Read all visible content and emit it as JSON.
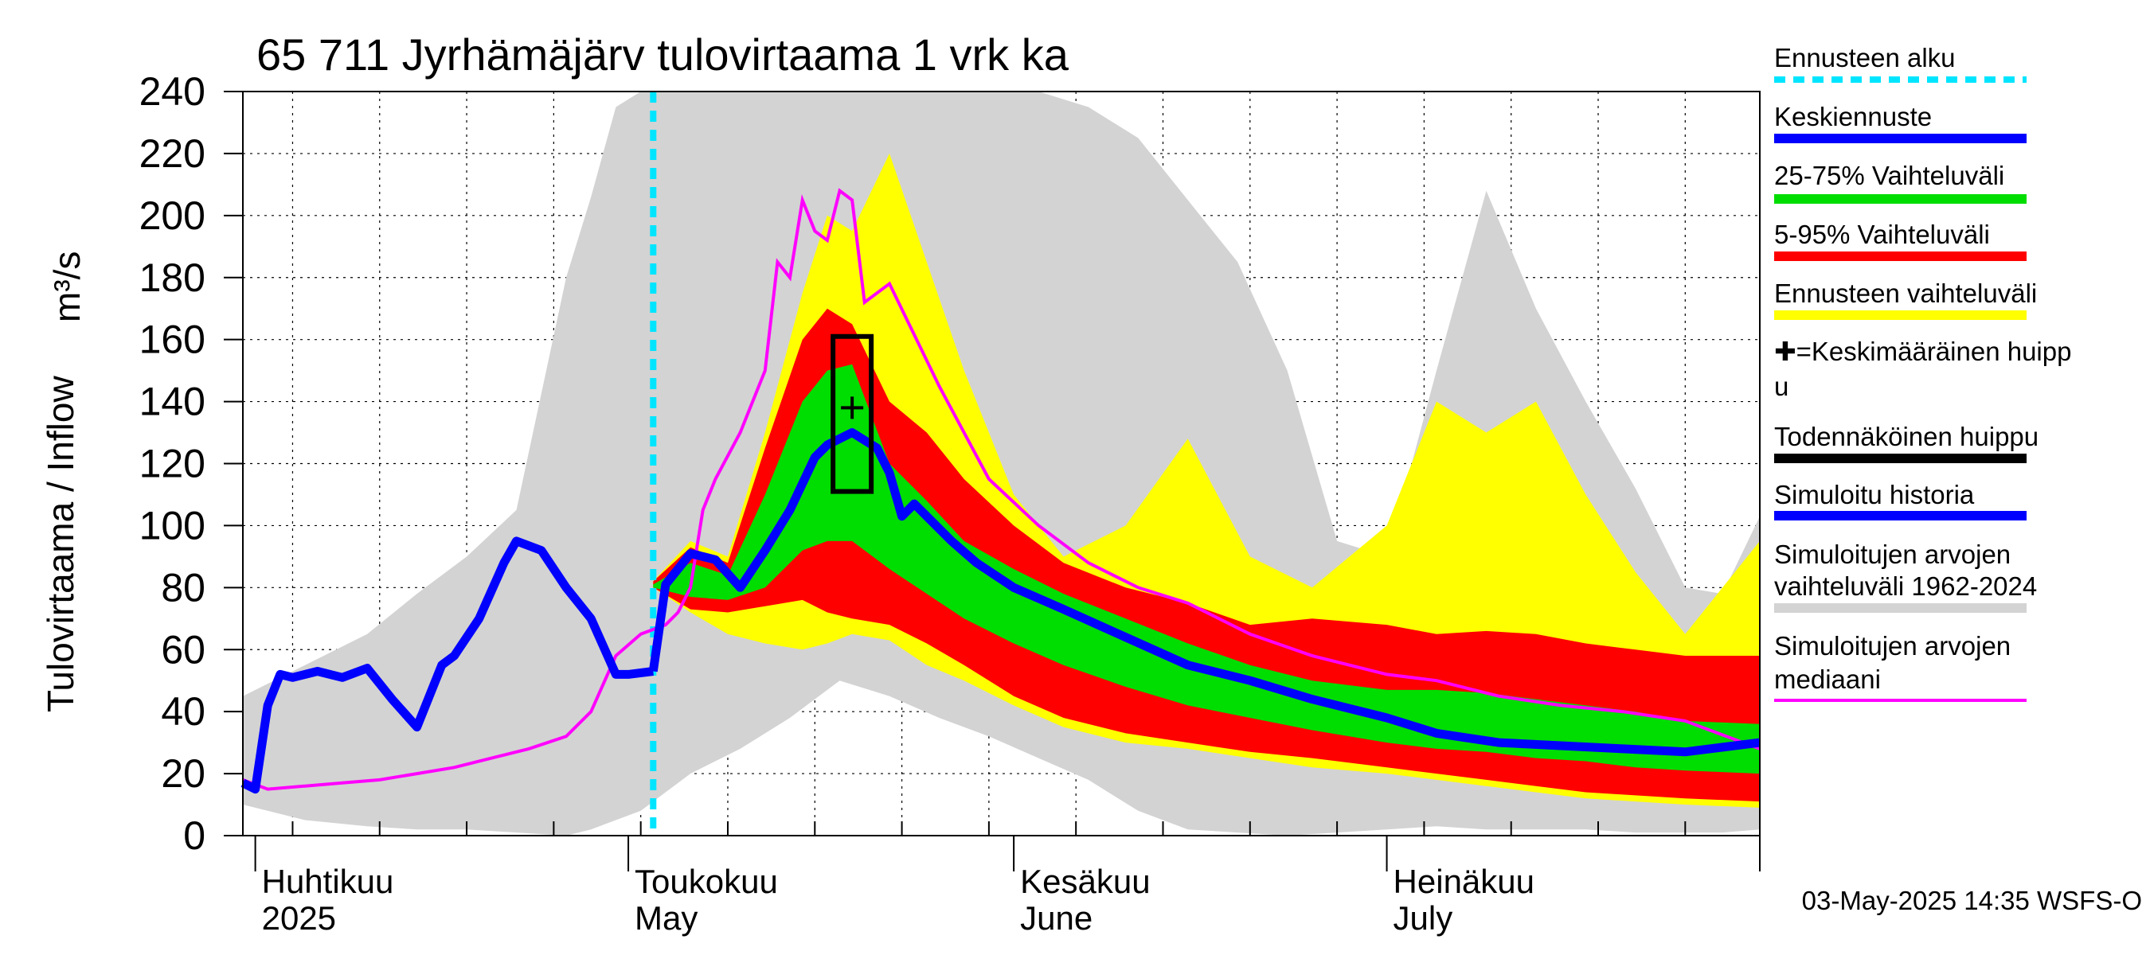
{
  "chart_data": {
    "type": "area",
    "title": "65 711 Jyrhämäjärv tulovirtaama 1 vrk ka",
    "ylabel_left": "Tulovirtaama / Inflow",
    "ylabel_unit": "m³/s",
    "timestamp": "03-May-2025 14:35 WSFS-O",
    "x_start": "2025-03-31",
    "x_end": "2025-07-31",
    "ylim": [
      0,
      240
    ],
    "yticks": [
      "0",
      "20",
      "40",
      "60",
      "80",
      "100",
      "120",
      "140",
      "160",
      "180",
      "200",
      "220",
      "240"
    ],
    "grid": true,
    "legend_position": "right",
    "months": [
      {
        "fi": "Huhtikuu",
        "en": "2025",
        "date": "2025-04-01"
      },
      {
        "fi": "Toukokuu",
        "en": "May",
        "date": "2025-05-01"
      },
      {
        "fi": "Kesäkuu",
        "en": "June",
        "date": "2025-06-01"
      },
      {
        "fi": "Heinäkuu",
        "en": "July",
        "date": "2025-07-01"
      }
    ],
    "forecast_start": "2025-05-03",
    "peak_box": {
      "date": "2025-05-19",
      "low": 111,
      "high": 161
    },
    "mean_peak": {
      "date": "2025-05-19",
      "value": 138
    },
    "historical_range_1962_2024": {
      "dates": [
        "2025-03-31",
        "2025-04-05",
        "2025-04-10",
        "2025-04-14",
        "2025-04-18",
        "2025-04-22",
        "2025-04-26",
        "2025-04-28",
        "2025-04-30",
        "2025-05-02",
        "2025-05-06",
        "2025-05-10",
        "2025-05-14",
        "2025-05-18",
        "2025-05-22",
        "2025-05-26",
        "2025-05-30",
        "2025-06-03",
        "2025-06-07",
        "2025-06-11",
        "2025-06-15",
        "2025-06-19",
        "2025-06-23",
        "2025-06-27",
        "2025-07-01",
        "2025-07-05",
        "2025-07-09",
        "2025-07-13",
        "2025-07-17",
        "2025-07-21",
        "2025-07-25",
        "2025-07-28",
        "2025-07-31"
      ],
      "upper": [
        45,
        55,
        65,
        78,
        90,
        105,
        180,
        206,
        235,
        240,
        240,
        240,
        240,
        240,
        240,
        240,
        240,
        240,
        235,
        225,
        205,
        185,
        150,
        95,
        90,
        150,
        208,
        170,
        140,
        112,
        80,
        78,
        103
      ],
      "lower": [
        10,
        5,
        3,
        2,
        2,
        1,
        0,
        2,
        5,
        8,
        20,
        28,
        38,
        50,
        45,
        38,
        32,
        25,
        18,
        8,
        2,
        1,
        0,
        1,
        2,
        3,
        2,
        2,
        2,
        1,
        1,
        1,
        2
      ]
    },
    "forecast_range": {
      "dates": [
        "2025-05-03",
        "2025-05-06",
        "2025-05-09",
        "2025-05-12",
        "2025-05-15",
        "2025-05-17",
        "2025-05-19",
        "2025-05-22",
        "2025-05-25",
        "2025-05-28",
        "2025-06-01",
        "2025-06-05",
        "2025-06-10",
        "2025-06-15",
        "2025-06-20",
        "2025-06-25",
        "2025-07-01",
        "2025-07-05",
        "2025-07-09",
        "2025-07-13",
        "2025-07-17",
        "2025-07-21",
        "2025-07-25",
        "2025-07-31"
      ],
      "upper": [
        82,
        95,
        90,
        130,
        175,
        200,
        195,
        220,
        185,
        150,
        110,
        90,
        100,
        128,
        90,
        80,
        100,
        140,
        130,
        140,
        110,
        85,
        65,
        95
      ],
      "lower": [
        80,
        72,
        65,
        62,
        60,
        62,
        65,
        63,
        55,
        50,
        42,
        35,
        30,
        28,
        25,
        22,
        20,
        18,
        16,
        14,
        12,
        11,
        10,
        9
      ]
    },
    "range_5_95": {
      "dates": [
        "2025-05-03",
        "2025-05-06",
        "2025-05-09",
        "2025-05-12",
        "2025-05-15",
        "2025-05-17",
        "2025-05-19",
        "2025-05-22",
        "2025-05-25",
        "2025-05-28",
        "2025-06-01",
        "2025-06-05",
        "2025-06-10",
        "2025-06-15",
        "2025-06-20",
        "2025-06-25",
        "2025-07-01",
        "2025-07-05",
        "2025-07-09",
        "2025-07-13",
        "2025-07-17",
        "2025-07-21",
        "2025-07-25",
        "2025-07-31"
      ],
      "upper": [
        82,
        93,
        88,
        125,
        160,
        170,
        165,
        140,
        130,
        115,
        100,
        88,
        80,
        75,
        68,
        70,
        68,
        65,
        66,
        65,
        62,
        60,
        58,
        58
      ],
      "lower": [
        80,
        73,
        72,
        74,
        76,
        72,
        70,
        68,
        62,
        55,
        45,
        38,
        33,
        30,
        27,
        25,
        22,
        20,
        18,
        16,
        14,
        13,
        12,
        11
      ]
    },
    "range_25_75": {
      "dates": [
        "2025-05-03",
        "2025-05-06",
        "2025-05-09",
        "2025-05-12",
        "2025-05-15",
        "2025-05-17",
        "2025-05-19",
        "2025-05-22",
        "2025-05-25",
        "2025-05-28",
        "2025-06-01",
        "2025-06-05",
        "2025-06-10",
        "2025-06-15",
        "2025-06-20",
        "2025-06-25",
        "2025-07-01",
        "2025-07-05",
        "2025-07-09",
        "2025-07-13",
        "2025-07-17",
        "2025-07-21",
        "2025-07-25",
        "2025-07-31"
      ],
      "upper": [
        81,
        88,
        84,
        110,
        140,
        150,
        152,
        120,
        108,
        95,
        86,
        78,
        70,
        62,
        55,
        50,
        47,
        47,
        46,
        44,
        42,
        40,
        37,
        36
      ],
      "lower": [
        80,
        77,
        76,
        80,
        92,
        95,
        95,
        86,
        78,
        70,
        62,
        55,
        48,
        42,
        38,
        34,
        30,
        28,
        27,
        25,
        24,
        22,
        21,
        20
      ]
    },
    "median_1962_2024": {
      "dates": [
        "2025-03-31",
        "2025-04-02",
        "2025-04-05",
        "2025-04-08",
        "2025-04-11",
        "2025-04-14",
        "2025-04-17",
        "2025-04-20",
        "2025-04-23",
        "2025-04-26",
        "2025-04-28",
        "2025-04-30",
        "2025-05-02",
        "2025-05-04",
        "2025-05-05",
        "2025-05-06",
        "2025-05-07",
        "2025-05-08",
        "2025-05-10",
        "2025-05-12",
        "2025-05-13",
        "2025-05-14",
        "2025-05-15",
        "2025-05-16",
        "2025-05-17",
        "2025-05-18",
        "2025-05-19",
        "2025-05-20",
        "2025-05-22",
        "2025-05-26",
        "2025-05-30",
        "2025-06-03",
        "2025-06-07",
        "2025-06-11",
        "2025-06-15",
        "2025-06-20",
        "2025-06-25",
        "2025-07-01",
        "2025-07-05",
        "2025-07-10",
        "2025-07-15",
        "2025-07-20",
        "2025-07-25",
        "2025-07-31"
      ],
      "values": [
        18,
        15,
        16,
        17,
        18,
        20,
        22,
        25,
        28,
        32,
        40,
        58,
        65,
        68,
        72,
        80,
        105,
        115,
        130,
        150,
        185,
        180,
        205,
        195,
        192,
        208,
        205,
        172,
        178,
        145,
        115,
        100,
        88,
        80,
        75,
        65,
        58,
        52,
        50,
        45,
        42,
        40,
        37,
        28
      ]
    },
    "simulated_history": {
      "dates": [
        "2025-03-31",
        "2025-04-01",
        "2025-04-02",
        "2025-04-03",
        "2025-04-04",
        "2025-04-06",
        "2025-04-08",
        "2025-04-10",
        "2025-04-12",
        "2025-04-14",
        "2025-04-16",
        "2025-04-17",
        "2025-04-19",
        "2025-04-21",
        "2025-04-22",
        "2025-04-24",
        "2025-04-26",
        "2025-04-28",
        "2025-04-30",
        "2025-05-01",
        "2025-05-03"
      ],
      "values": [
        17,
        15,
        42,
        52,
        51,
        53,
        51,
        54,
        44,
        35,
        55,
        58,
        70,
        88,
        95,
        92,
        80,
        70,
        52,
        52,
        53
      ]
    },
    "mean_forecast": {
      "dates": [
        "2025-05-03",
        "2025-05-04",
        "2025-05-06",
        "2025-05-08",
        "2025-05-10",
        "2025-05-12",
        "2025-05-14",
        "2025-05-16",
        "2025-05-17",
        "2025-05-19",
        "2025-05-21",
        "2025-05-22",
        "2025-05-23",
        "2025-05-24",
        "2025-05-25",
        "2025-05-27",
        "2025-05-29",
        "2025-06-01",
        "2025-06-05",
        "2025-06-10",
        "2025-06-15",
        "2025-06-20",
        "2025-06-25",
        "2025-07-01",
        "2025-07-05",
        "2025-07-10",
        "2025-07-15",
        "2025-07-20",
        "2025-07-25",
        "2025-07-31"
      ],
      "values": [
        53,
        81,
        91,
        89,
        80,
        92,
        105,
        122,
        126,
        130,
        125,
        117,
        103,
        107,
        103,
        95,
        88,
        80,
        73,
        64,
        55,
        50,
        44,
        38,
        33,
        30,
        29,
        28,
        27,
        30
      ]
    }
  },
  "legend": {
    "items": [
      {
        "label": "Ennusteen alku",
        "color": "#00e5ff",
        "style": "dashed"
      },
      {
        "label": "Keskiennuste",
        "color": "#0000ff",
        "style": "solid"
      },
      {
        "label": "25-75% Vaihteluväli",
        "color": "#00dd00",
        "style": "solid"
      },
      {
        "label": "5-95% Vaihteluväli",
        "color": "#ff0000",
        "style": "solid"
      },
      {
        "label": "Ennusteen vaihteluväli",
        "color": "#ffff00",
        "style": "solid"
      },
      {
        "label": "✚=Keskimääräinen huipp",
        "label2": "u",
        "color": "",
        "style": "none"
      },
      {
        "label": "Todennäköinen huippu",
        "color": "#000000",
        "style": "solid"
      },
      {
        "label": "Simuloitu historia",
        "color": "#0000ff",
        "style": "solid"
      },
      {
        "label": "Simuloitujen arvojen",
        "label2": "vaihteluväli 1962-2024",
        "color": "#d3d3d3",
        "style": "solid"
      },
      {
        "label": "Simuloitujen arvojen",
        "label2": "mediaani",
        "color": "#ff00ff",
        "style": "thin"
      }
    ]
  },
  "colors": {
    "historical_range": "#d3d3d3",
    "forecast_range": "#ffff00",
    "range_5_95": "#ff0000",
    "range_25_75": "#00dd00",
    "mean_forecast": "#0000ff",
    "simulated_history": "#0000ff",
    "median": "#ff00ff",
    "forecast_start": "#00e5ff",
    "peak_box": "#000000"
  }
}
